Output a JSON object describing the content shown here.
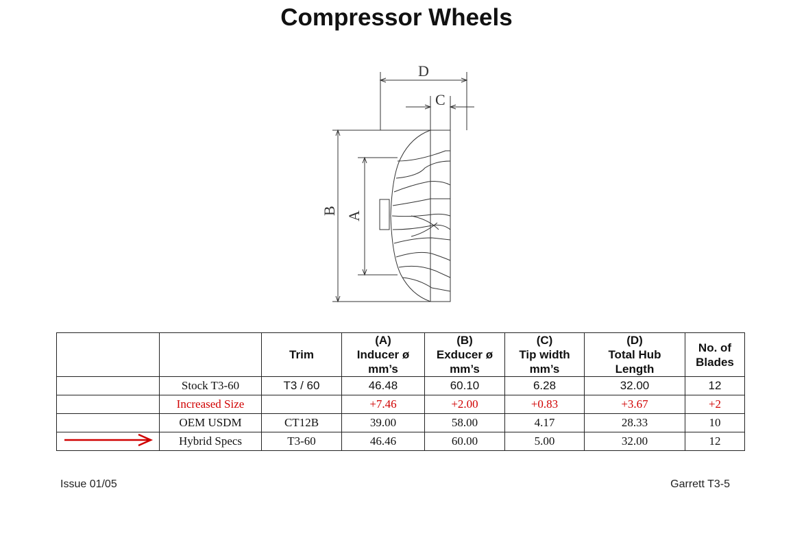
{
  "page": {
    "title": "Compressor Wheels"
  },
  "diagram": {
    "labels": {
      "D": "D",
      "C": "C",
      "B": "B",
      "A": "A"
    }
  },
  "table": {
    "headers": [
      "",
      "",
      "Trim",
      "(A)\nInducer ø\nmm’s",
      "(B)\nExducer ø\nmm’s",
      "(C)\nTip width\nmm’s",
      "(D)\nTotal Hub\nLength",
      "No. of\nBlades"
    ],
    "rows": [
      {
        "name": "Stock T3-60",
        "trim": "T3 / 60",
        "a": "46.48",
        "b": "60.10",
        "c": "6.28",
        "d": "32.00",
        "blades": "12",
        "highlight": false
      },
      {
        "name": "Increased Size",
        "trim": "",
        "a": "+7.46",
        "b": "+2.00",
        "c": "+0.83",
        "d": "+3.67",
        "blades": "+2",
        "highlight": true
      },
      {
        "name": "OEM USDM",
        "trim": "CT12B",
        "a": "39.00",
        "b": "58.00",
        "c": "4.17",
        "d": "28.33",
        "blades": "10",
        "highlight": false
      },
      {
        "name": "Hybrid Specs",
        "trim": "T3-60",
        "a": "46.46",
        "b": "60.00",
        "c": "5.00",
        "d": "32.00",
        "blades": "12",
        "highlight": false,
        "arrow": true
      }
    ],
    "arrow_color": "#d00000"
  },
  "footer": {
    "left": "Issue 01/05",
    "right": "Garrett T3-5"
  }
}
